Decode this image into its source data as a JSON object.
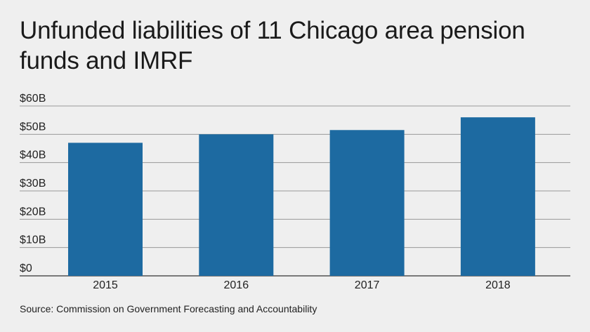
{
  "title": "Unfunded liabilities of 11 Chicago area pension funds and IMRF",
  "source": "Source: Commission on Government Forecasting and Accountability",
  "colors": {
    "bar": "#1d6aa1",
    "grid": "#9a9a9a",
    "axis": "#333333",
    "background": "#efefef"
  },
  "chart_data": {
    "type": "bar",
    "categories": [
      "2015",
      "2016",
      "2017",
      "2018"
    ],
    "values": [
      47,
      50,
      51.5,
      56
    ],
    "ylim": [
      0,
      60
    ],
    "yticks": [
      0,
      10,
      20,
      30,
      40,
      50,
      60
    ],
    "ytick_labels": [
      "$0",
      "$10B",
      "$20B",
      "$30B",
      "$40B",
      "$50B",
      "$60B"
    ],
    "grid": true
  }
}
